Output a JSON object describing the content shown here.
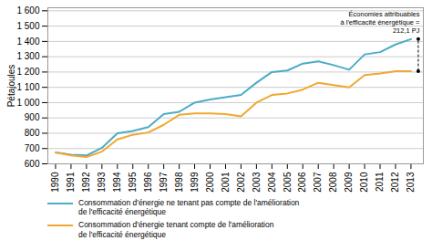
{
  "chart_data": {
    "type": "line",
    "x": [
      1990,
      1991,
      1992,
      1993,
      1994,
      1995,
      1996,
      1997,
      1998,
      1999,
      2000,
      2001,
      2002,
      2003,
      2004,
      2005,
      2006,
      2007,
      2008,
      2009,
      2010,
      2011,
      2012,
      2013
    ],
    "series": [
      {
        "name": "Consommation d'énergie ne tenant pas compte de l'amélioration\nde l'efficacité énergétique",
        "color": "#4bacc6",
        "values": [
          675,
          660,
          655,
          705,
          800,
          815,
          840,
          925,
          940,
          1000,
          1020,
          1035,
          1050,
          1130,
          1200,
          1210,
          1255,
          1270,
          1245,
          1215,
          1315,
          1330,
          1380,
          1415
        ]
      },
      {
        "name": "Consommation d'énergie tenant compte de l'amélioration\nde l'efficacité énergétique",
        "color": "#f0a830",
        "values": [
          675,
          655,
          645,
          680,
          760,
          790,
          805,
          855,
          920,
          930,
          930,
          925,
          910,
          1000,
          1050,
          1060,
          1085,
          1130,
          1115,
          1100,
          1180,
          1190,
          1205,
          1205
        ]
      }
    ],
    "ylabel": "Pétajoules",
    "xlim": [
      1989.5,
      2013.8
    ],
    "xticks": [
      1990,
      1991,
      1992,
      1993,
      1994,
      1995,
      1996,
      1997,
      1998,
      1999,
      2000,
      2001,
      2002,
      2003,
      2004,
      2005,
      2006,
      2007,
      2008,
      2009,
      2010,
      2011,
      2012,
      2013
    ],
    "ylim": [
      600,
      1620
    ],
    "yticks": [
      600,
      700,
      800,
      900,
      {
        "value": 1000,
        "label": "1 000"
      },
      {
        "value": 1100,
        "label": "1 100"
      },
      {
        "value": 1200,
        "label": "1 200"
      },
      {
        "value": 1300,
        "label": "1 300"
      },
      {
        "value": 1400,
        "label": "1 400"
      },
      {
        "value": 1500,
        "label": "1 500"
      },
      {
        "value": 1600,
        "label": "1 600"
      }
    ],
    "annotation": "Économies attribuables\nà l'efficacité énergétique =\n212,1 PJ",
    "grid": true,
    "legend": "bottom"
  }
}
